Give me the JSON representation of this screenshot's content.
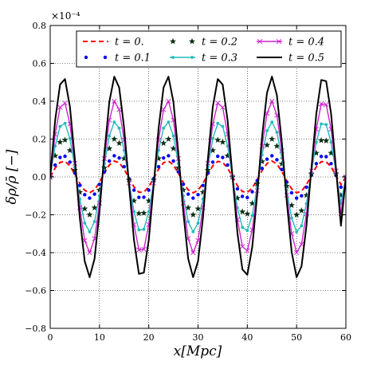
{
  "chart_data": {
    "type": "line",
    "xlabel": "x[Mpc]",
    "ylabel": "δρ/ρ̄ [−]",
    "y_exponent_label": "×10⁻⁴",
    "xlim": [
      0,
      60
    ],
    "ylim": [
      -0.8,
      0.8
    ],
    "x_ticks": [
      0,
      10,
      20,
      30,
      40,
      50,
      60
    ],
    "x_tick_labels": [
      "0",
      "10",
      "20",
      "30",
      "40",
      "50",
      "60"
    ],
    "y_ticks": [
      -0.8,
      -0.6,
      -0.4,
      -0.2,
      0.0,
      0.2,
      0.4,
      0.6,
      0.8
    ],
    "y_tick_labels": [
      "−0.8",
      "−0.6",
      "−0.4",
      "−0.2",
      "0.0",
      "0.2",
      "0.4",
      "0.6",
      "0.8"
    ],
    "grid": true,
    "legend_position": "top",
    "x": [
      0,
      1,
      2,
      3,
      4,
      5,
      6,
      7,
      8,
      9,
      10,
      11,
      12,
      13,
      14,
      15,
      16,
      17,
      18,
      19,
      20,
      21,
      22,
      23,
      24,
      25,
      26,
      27,
      28,
      29,
      30,
      31,
      32,
      33,
      34,
      35,
      36,
      37,
      38,
      39,
      40,
      41,
      42,
      43,
      44,
      45,
      46,
      47,
      48,
      49,
      50,
      51,
      52,
      53,
      54,
      55,
      56,
      57,
      58,
      59,
      60
    ],
    "series": [
      {
        "name": "t = 0.",
        "color": "#ff0000",
        "style": "dashed",
        "values": [
          0.0,
          0.047,
          0.077,
          0.082,
          0.059,
          0.015,
          -0.034,
          -0.071,
          -0.084,
          -0.068,
          -0.029,
          0.02,
          0.063,
          0.084,
          0.075,
          0.041,
          -0.007,
          -0.053,
          -0.081,
          -0.08,
          -0.053,
          -0.007,
          0.041,
          0.075,
          0.084,
          0.063,
          0.02,
          -0.029,
          -0.068,
          -0.084,
          -0.071,
          -0.034,
          0.015,
          0.059,
          0.082,
          0.077,
          0.047,
          0.0,
          -0.047,
          -0.077,
          -0.082,
          -0.059,
          -0.015,
          0.034,
          0.071,
          0.084,
          0.068,
          0.029,
          -0.02,
          -0.063,
          -0.084,
          -0.075,
          -0.041,
          0.007,
          0.053,
          0.081,
          0.08,
          0.053,
          0.007,
          -0.041,
          0.0
        ]
      },
      {
        "name": "t = 0.1",
        "color": "#0000ff",
        "style": "dots",
        "values": [
          0.0,
          0.063,
          0.103,
          0.109,
          0.078,
          0.02,
          -0.045,
          -0.094,
          -0.112,
          -0.091,
          -0.039,
          0.027,
          0.084,
          0.112,
          0.1,
          0.054,
          -0.009,
          -0.07,
          -0.108,
          -0.107,
          -0.07,
          -0.009,
          0.054,
          0.1,
          0.112,
          0.084,
          0.027,
          -0.039,
          -0.091,
          -0.112,
          -0.094,
          -0.045,
          0.02,
          0.078,
          0.109,
          0.103,
          0.063,
          0.0,
          -0.063,
          -0.103,
          -0.109,
          -0.078,
          -0.02,
          0.045,
          0.094,
          0.112,
          0.091,
          0.039,
          -0.027,
          -0.084,
          -0.112,
          -0.1,
          -0.054,
          0.009,
          0.07,
          0.108,
          0.107,
          0.07,
          0.009,
          -0.054,
          0.0
        ]
      },
      {
        "name": "t = 0.2",
        "color": "#0b2e14",
        "style": "stars",
        "values": [
          0.0,
          0.112,
          0.184,
          0.195,
          0.14,
          0.036,
          -0.081,
          -0.168,
          -0.2,
          -0.163,
          -0.069,
          0.048,
          0.15,
          0.2,
          0.178,
          0.097,
          -0.016,
          -0.126,
          -0.193,
          -0.191,
          -0.126,
          -0.016,
          0.097,
          0.178,
          0.2,
          0.15,
          0.048,
          -0.069,
          -0.163,
          -0.2,
          -0.168,
          -0.081,
          0.036,
          0.14,
          0.195,
          0.184,
          0.112,
          0.0,
          -0.112,
          -0.184,
          -0.195,
          -0.14,
          -0.036,
          0.081,
          0.168,
          0.2,
          0.163,
          0.069,
          -0.048,
          -0.15,
          -0.2,
          -0.178,
          -0.097,
          0.016,
          0.126,
          0.193,
          0.191,
          0.126,
          0.016,
          -0.097,
          0.0
        ]
      },
      {
        "name": "t = 0.3",
        "color": "#22bbbb",
        "style": "line-dots",
        "values": [
          0.0,
          0.163,
          0.267,
          0.283,
          0.203,
          0.052,
          -0.117,
          -0.244,
          -0.29,
          -0.236,
          -0.1,
          0.07,
          0.217,
          0.29,
          0.258,
          0.141,
          -0.023,
          -0.183,
          -0.28,
          -0.277,
          -0.183,
          -0.023,
          0.141,
          0.258,
          0.29,
          0.217,
          0.07,
          -0.1,
          -0.236,
          -0.29,
          -0.244,
          -0.117,
          0.052,
          0.203,
          0.283,
          0.267,
          0.163,
          0.0,
          -0.163,
          -0.267,
          -0.283,
          -0.203,
          -0.052,
          0.117,
          0.244,
          0.29,
          0.236,
          0.1,
          -0.07,
          -0.217,
          -0.29,
          -0.258,
          -0.141,
          0.023,
          0.183,
          0.28,
          0.277,
          0.183,
          0.023,
          -0.141,
          0.0
        ]
      },
      {
        "name": "t = 0.4",
        "color": "#cc22cc",
        "style": "line-x",
        "values": [
          0.0,
          0.225,
          0.368,
          0.39,
          0.28,
          0.072,
          -0.162,
          -0.336,
          -0.4,
          -0.326,
          -0.138,
          0.097,
          0.3,
          0.4,
          0.356,
          0.195,
          -0.032,
          -0.252,
          -0.386,
          -0.382,
          -0.252,
          -0.032,
          0.195,
          0.356,
          0.4,
          0.3,
          0.097,
          -0.138,
          -0.326,
          -0.4,
          -0.336,
          -0.162,
          0.072,
          0.28,
          0.39,
          0.368,
          0.225,
          0.0,
          -0.225,
          -0.368,
          -0.39,
          -0.28,
          -0.072,
          0.162,
          0.336,
          0.4,
          0.326,
          0.138,
          -0.097,
          -0.3,
          -0.4,
          -0.356,
          -0.195,
          0.032,
          0.252,
          0.386,
          0.382,
          0.252,
          0.032,
          -0.195,
          0.0
        ]
      },
      {
        "name": "t = 0.5",
        "color": "#000000",
        "style": "solid",
        "values": [
          0.0,
          0.298,
          0.488,
          0.517,
          0.371,
          0.095,
          -0.215,
          -0.445,
          -0.53,
          -0.432,
          -0.183,
          0.128,
          0.397,
          0.53,
          0.472,
          0.258,
          -0.043,
          -0.334,
          -0.512,
          -0.506,
          -0.334,
          -0.043,
          0.258,
          0.472,
          0.53,
          0.397,
          0.128,
          -0.183,
          -0.432,
          -0.53,
          -0.445,
          -0.215,
          0.095,
          0.371,
          0.517,
          0.488,
          0.298,
          0.0,
          -0.298,
          -0.488,
          -0.517,
          -0.371,
          -0.095,
          0.215,
          0.445,
          0.53,
          0.432,
          0.183,
          -0.128,
          -0.397,
          -0.53,
          -0.472,
          -0.258,
          0.043,
          0.334,
          0.512,
          0.506,
          0.334,
          0.043,
          -0.258,
          0.0
        ]
      }
    ]
  }
}
